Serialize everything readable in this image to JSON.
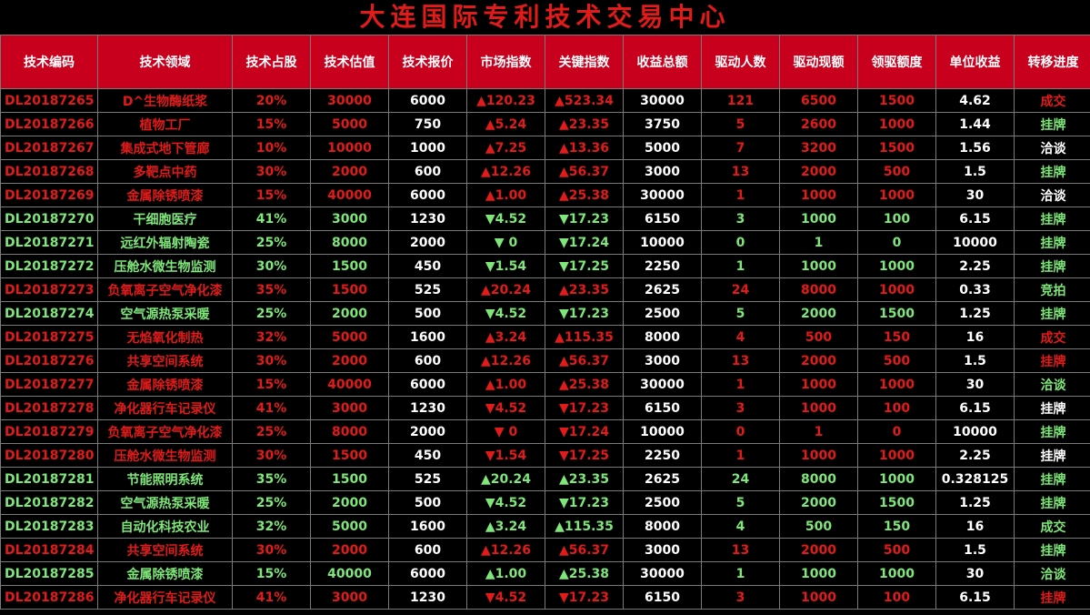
{
  "title": "大连国际专利技术交易中心",
  "colors": {
    "header_bg": "#c8001e",
    "red": "#e21a1a",
    "green": "#7fe67a",
    "white": "#ffffff",
    "background": "#000000"
  },
  "headers": [
    "技术编码",
    "技术领域",
    "技术占股",
    "技术估值",
    "技术报价",
    "市场指数",
    "关键指数",
    "收益总额",
    "驱动人数",
    "驱动现额",
    "领驱额度",
    "单位收益",
    "转移进度"
  ],
  "rows": [
    {
      "code": "DL20187265",
      "field": "D^生物酶纸浆",
      "share": "20%",
      "valuation": "30000",
      "price": "6000",
      "market": "▲120.23",
      "key": "▲523.34",
      "revenue": "30000",
      "drivers": "121",
      "drive_amount": "6500",
      "lead": "1500",
      "unit": "4.62",
      "progress": "成交",
      "row_color": "red",
      "progress_color": "red"
    },
    {
      "code": "DL20187266",
      "field": "植物工厂",
      "share": "15%",
      "valuation": "5000",
      "price": "750",
      "market": "▲5.24",
      "key": "▲23.35",
      "revenue": "3750",
      "drivers": "5",
      "drive_amount": "2600",
      "lead": "1000",
      "unit": "1.44",
      "progress": "挂牌",
      "row_color": "red",
      "progress_color": "green"
    },
    {
      "code": "DL20187267",
      "field": "集成式地下管廊",
      "share": "10%",
      "valuation": "10000",
      "price": "1000",
      "market": "▲7.25",
      "key": "▲13.36",
      "revenue": "5000",
      "drivers": "7",
      "drive_amount": "3200",
      "lead": "1500",
      "unit": "1.56",
      "progress": "洽谈",
      "row_color": "red",
      "progress_color": "white"
    },
    {
      "code": "DL20187268",
      "field": "多靶点中药",
      "share": "30%",
      "valuation": "2000",
      "price": "600",
      "market": "▲12.26",
      "key": "▲56.37",
      "revenue": "3000",
      "drivers": "13",
      "drive_amount": "2000",
      "lead": "500",
      "unit": "1.5",
      "progress": "挂牌",
      "row_color": "red",
      "progress_color": "green"
    },
    {
      "code": "DL20187269",
      "field": "金属除锈喷漆",
      "share": "15%",
      "valuation": "40000",
      "price": "6000",
      "market": "▲1.00",
      "key": "▲25.38",
      "revenue": "30000",
      "drivers": "1",
      "drive_amount": "1000",
      "lead": "1000",
      "unit": "30",
      "progress": "洽谈",
      "row_color": "red",
      "progress_color": "white"
    },
    {
      "code": "DL20187270",
      "field": "干细胞医疗",
      "share": "41%",
      "valuation": "3000",
      "price": "1230",
      "market": "▼4.52",
      "key": "▼17.23",
      "revenue": "6150",
      "drivers": "3",
      "drive_amount": "1000",
      "lead": "100",
      "unit": "6.15",
      "progress": "挂牌",
      "row_color": "green",
      "progress_color": "green"
    },
    {
      "code": "DL20187271",
      "field": "远红外辐射陶瓷",
      "share": "25%",
      "valuation": "8000",
      "price": "2000",
      "market": "▼ 0",
      "key": "▼17.24",
      "revenue": "10000",
      "drivers": "0",
      "drive_amount": "1",
      "lead": "0",
      "unit": "10000",
      "progress": "挂牌",
      "row_color": "green",
      "progress_color": "green"
    },
    {
      "code": "DL20187272",
      "field": "压舱水微生物监测",
      "share": "30%",
      "valuation": "1500",
      "price": "450",
      "market": "▼1.54",
      "key": "▼17.25",
      "revenue": "2250",
      "drivers": "1",
      "drive_amount": "1000",
      "lead": "1000",
      "unit": "2.25",
      "progress": "挂牌",
      "row_color": "green",
      "progress_color": "green"
    },
    {
      "code": "DL20187273",
      "field": "负氧离子空气净化漆",
      "share": "35%",
      "valuation": "1500",
      "price": "525",
      "market": "▲20.24",
      "key": "▲23.35",
      "revenue": "2625",
      "drivers": "24",
      "drive_amount": "8000",
      "lead": "1000",
      "unit": "0.33",
      "progress": "竞拍",
      "row_color": "red",
      "progress_color": "green"
    },
    {
      "code": "DL20187274",
      "field": "空气源热泵采暖",
      "share": "25%",
      "valuation": "2000",
      "price": "500",
      "market": "▼4.52",
      "key": "▼17.23",
      "revenue": "2500",
      "drivers": "5",
      "drive_amount": "2000",
      "lead": "1500",
      "unit": "1.25",
      "progress": "挂牌",
      "row_color": "green",
      "progress_color": "green"
    },
    {
      "code": "DL20187275",
      "field": "无焰氧化制热",
      "share": "32%",
      "valuation": "5000",
      "price": "1600",
      "market": "▲3.24",
      "key": "▲115.35",
      "revenue": "8000",
      "drivers": "4",
      "drive_amount": "500",
      "lead": "150",
      "unit": "16",
      "progress": "成交",
      "row_color": "red",
      "progress_color": "red"
    },
    {
      "code": "DL20187276",
      "field": "共享空间系统",
      "share": "30%",
      "valuation": "2000",
      "price": "600",
      "market": "▲12.26",
      "key": "▲56.37",
      "revenue": "3000",
      "drivers": "13",
      "drive_amount": "2000",
      "lead": "500",
      "unit": "1.5",
      "progress": "挂牌",
      "row_color": "red",
      "progress_color": "red"
    },
    {
      "code": "DL20187277",
      "field": "金属除锈喷漆",
      "share": "15%",
      "valuation": "40000",
      "price": "6000",
      "market": "▲1.00",
      "key": "▲25.38",
      "revenue": "30000",
      "drivers": "1",
      "drive_amount": "1000",
      "lead": "1000",
      "unit": "30",
      "progress": "洽谈",
      "row_color": "red",
      "progress_color": "green"
    },
    {
      "code": "DL20187278",
      "field": "净化器行车记录仪",
      "share": "41%",
      "valuation": "3000",
      "price": "1230",
      "market": "▼4.52",
      "key": "▼17.23",
      "revenue": "6150",
      "drivers": "3",
      "drive_amount": "1000",
      "lead": "100",
      "unit": "6.15",
      "progress": "挂牌",
      "row_color": "red",
      "progress_color": "white"
    },
    {
      "code": "DL20187279",
      "field": "负氧离子空气净化漆",
      "share": "25%",
      "valuation": "8000",
      "price": "2000",
      "market": "▼ 0",
      "key": "▼17.24",
      "revenue": "10000",
      "drivers": "0",
      "drive_amount": "1",
      "lead": "0",
      "unit": "10000",
      "progress": "挂牌",
      "row_color": "red",
      "progress_color": "green"
    },
    {
      "code": "DL20187280",
      "field": "压舱水微生物监测",
      "share": "30%",
      "valuation": "1500",
      "price": "450",
      "market": "▼1.54",
      "key": "▼17.25",
      "revenue": "2250",
      "drivers": "1",
      "drive_amount": "1000",
      "lead": "1000",
      "unit": "2.25",
      "progress": "挂牌",
      "row_color": "red",
      "progress_color": "white"
    },
    {
      "code": "DL20187281",
      "field": "节能照明系统",
      "share": "35%",
      "valuation": "1500",
      "price": "525",
      "market": "▲20.24",
      "key": "▲23.35",
      "revenue": "2625",
      "drivers": "24",
      "drive_amount": "8000",
      "lead": "1000",
      "unit": "0.328125",
      "progress": "挂牌",
      "row_color": "green",
      "progress_color": "green"
    },
    {
      "code": "DL20187282",
      "field": "空气源热泵采暖",
      "share": "25%",
      "valuation": "2000",
      "price": "500",
      "market": "▼4.52",
      "key": "▼17.23",
      "revenue": "2500",
      "drivers": "5",
      "drive_amount": "2000",
      "lead": "1500",
      "unit": "1.25",
      "progress": "挂牌",
      "row_color": "green",
      "progress_color": "green"
    },
    {
      "code": "DL20187283",
      "field": "自动化科技农业",
      "share": "32%",
      "valuation": "5000",
      "price": "1600",
      "market": "▲3.24",
      "key": "▲115.35",
      "revenue": "8000",
      "drivers": "4",
      "drive_amount": "500",
      "lead": "150",
      "unit": "16",
      "progress": "成交",
      "row_color": "green",
      "progress_color": "green"
    },
    {
      "code": "DL20187284",
      "field": "共享空间系统",
      "share": "30%",
      "valuation": "2000",
      "price": "600",
      "market": "▲12.26",
      "key": "▲56.37",
      "revenue": "3000",
      "drivers": "13",
      "drive_amount": "2000",
      "lead": "500",
      "unit": "1.5",
      "progress": "挂牌",
      "row_color": "red",
      "progress_color": "green"
    },
    {
      "code": "DL20187285",
      "field": "金属除锈喷漆",
      "share": "15%",
      "valuation": "40000",
      "price": "6000",
      "market": "▲1.00",
      "key": "▲25.38",
      "revenue": "30000",
      "drivers": "1",
      "drive_amount": "1000",
      "lead": "1000",
      "unit": "30",
      "progress": "洽谈",
      "row_color": "green",
      "progress_color": "green"
    },
    {
      "code": "DL20187286",
      "field": "净化器行车记录仪",
      "share": "41%",
      "valuation": "3000",
      "price": "1230",
      "market": "▼4.52",
      "key": "▼17.23",
      "revenue": "6150",
      "drivers": "3",
      "drive_amount": "1000",
      "lead": "100",
      "unit": "6.15",
      "progress": "挂牌",
      "row_color": "red",
      "progress_color": "red"
    }
  ]
}
